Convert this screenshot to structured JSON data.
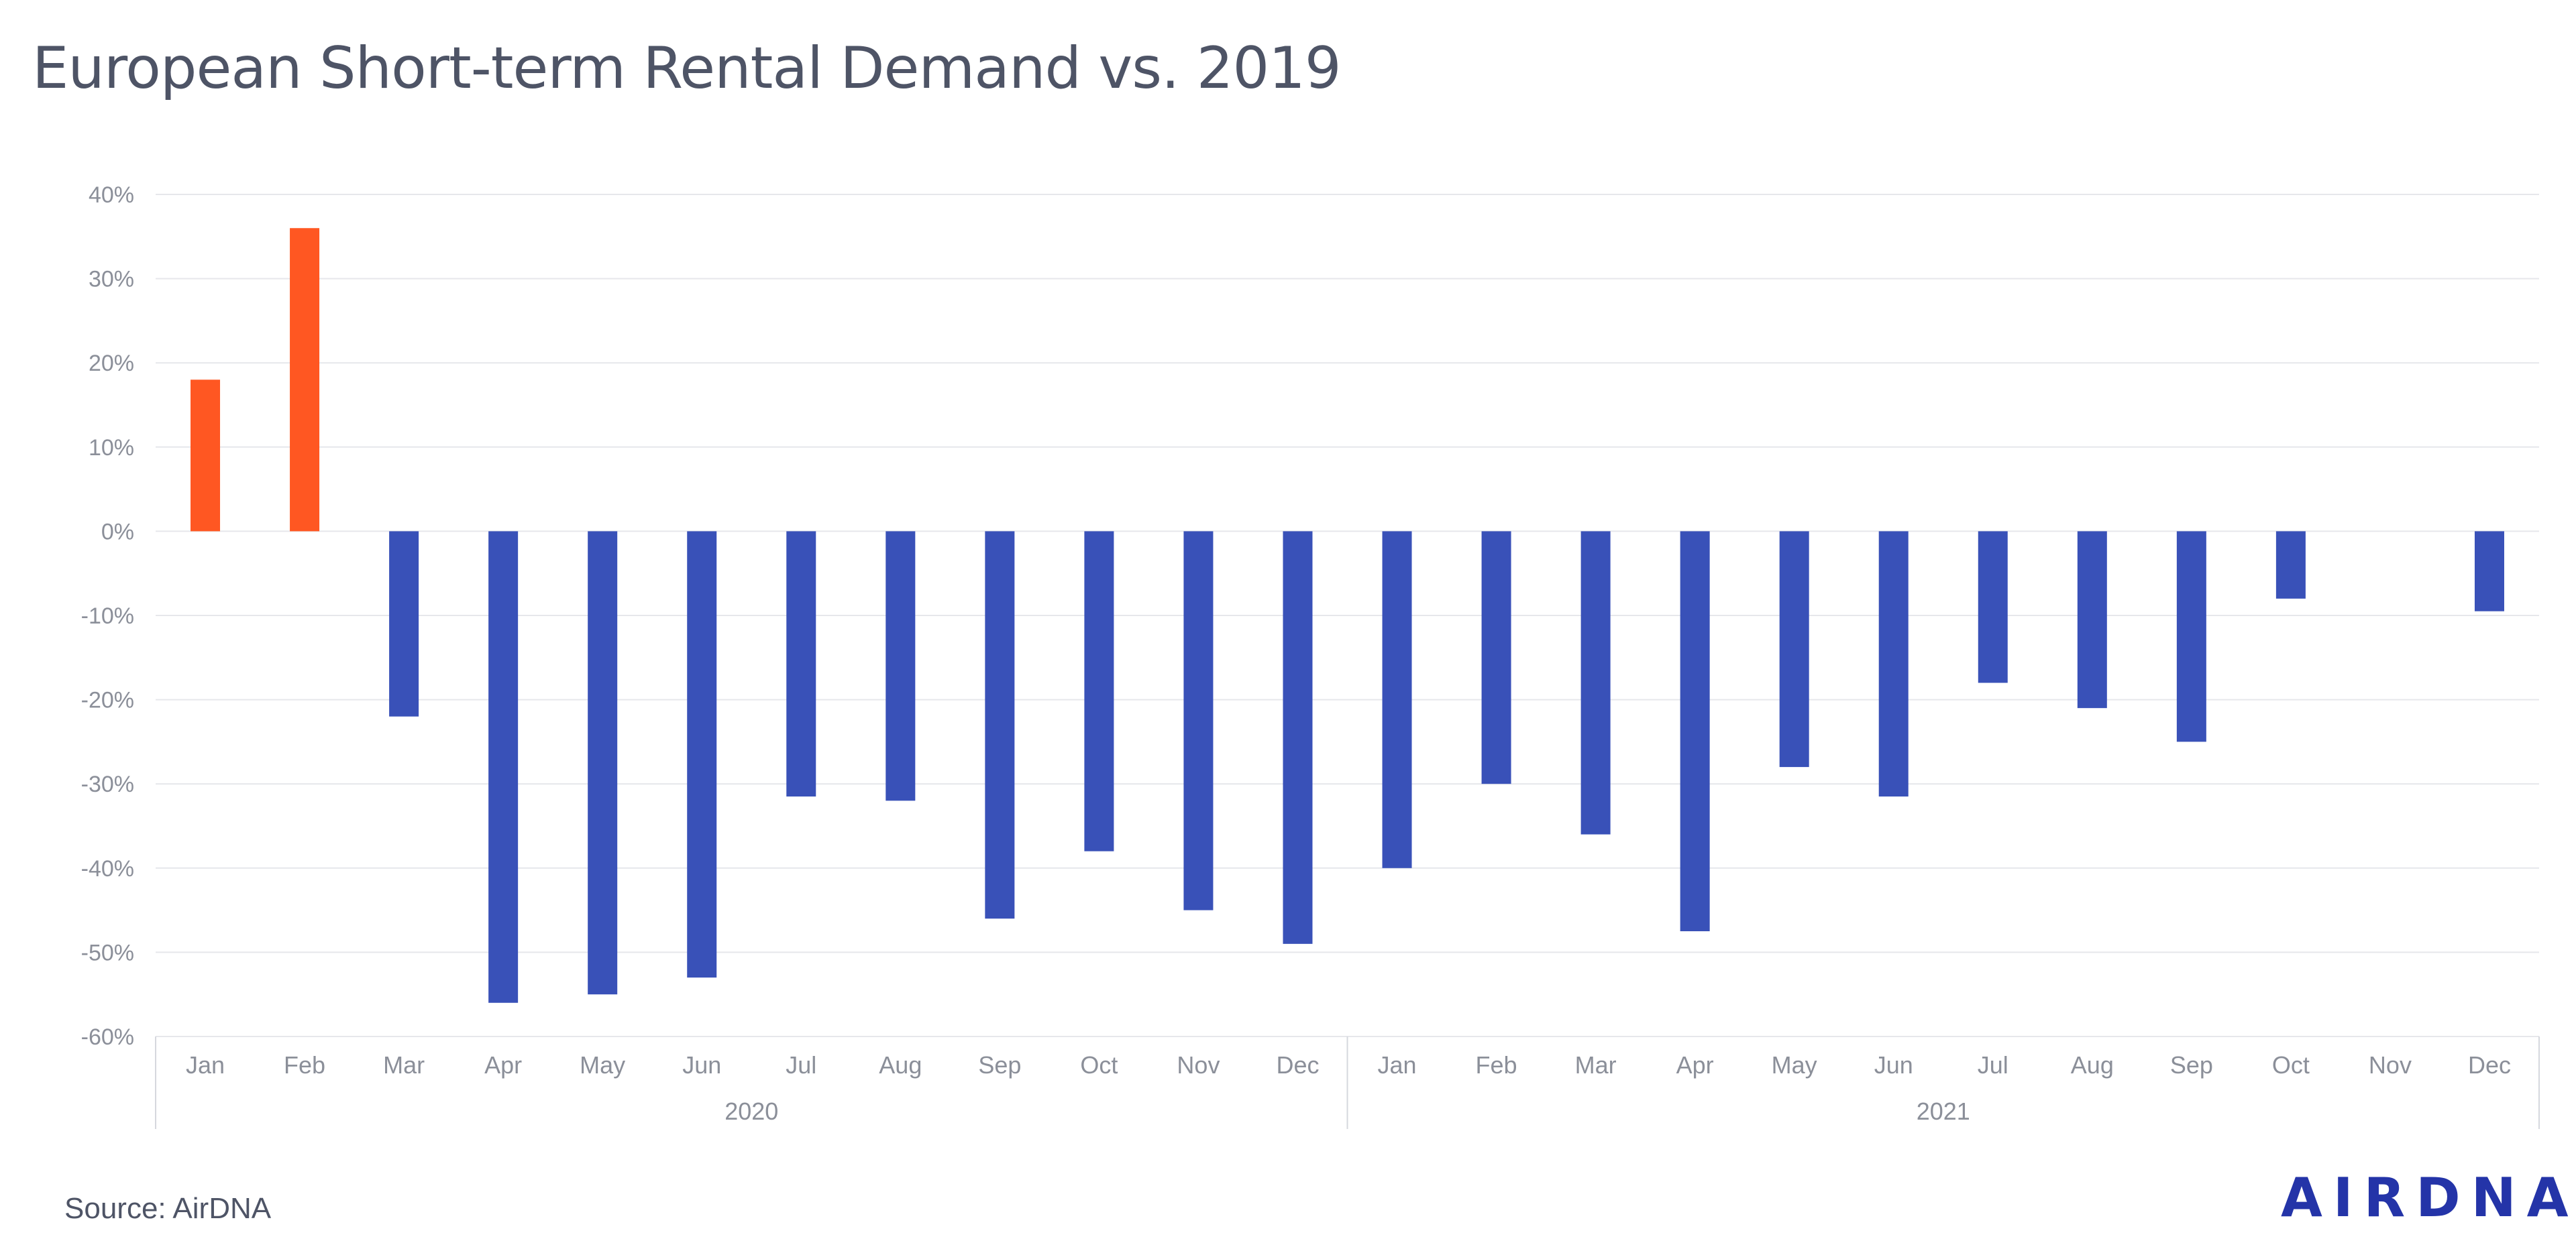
{
  "chart_data": {
    "type": "bar",
    "title": "European Short-term Rental Demand vs. 2019",
    "xlabel": "",
    "ylabel": "",
    "ylim": [
      -60,
      40
    ],
    "yticks": [
      "40%",
      "30%",
      "20%",
      "10%",
      "0%",
      "-10%",
      "-20%",
      "-30%",
      "-40%",
      "-50%",
      "-60%"
    ],
    "categories": [
      "Jan",
      "Feb",
      "Mar",
      "Apr",
      "May",
      "Jun",
      "Jul",
      "Aug",
      "Sep",
      "Oct",
      "Nov",
      "Dec",
      "Jan",
      "Feb",
      "Mar",
      "Apr",
      "May",
      "Jun",
      "Jul",
      "Aug",
      "Sep",
      "Oct",
      "Nov",
      "Dec"
    ],
    "groups": [
      {
        "label": "2020",
        "count": 12
      },
      {
        "label": "2021",
        "count": 12
      }
    ],
    "values": [
      18,
      36,
      -22,
      -56,
      -55,
      -53,
      -31.5,
      -32,
      -46,
      -38,
      -45,
      -49,
      -40,
      -30,
      -36,
      -47.5,
      -28,
      -31.5,
      -18,
      -21,
      -25,
      -8,
      null,
      -9.5
    ],
    "colors": {
      "positive": "#ff5722",
      "negative": "#3951b8"
    },
    "grid": true,
    "legend": "none"
  },
  "footer": {
    "source": "Source: AirDNA",
    "logo": "AIRDNA"
  }
}
